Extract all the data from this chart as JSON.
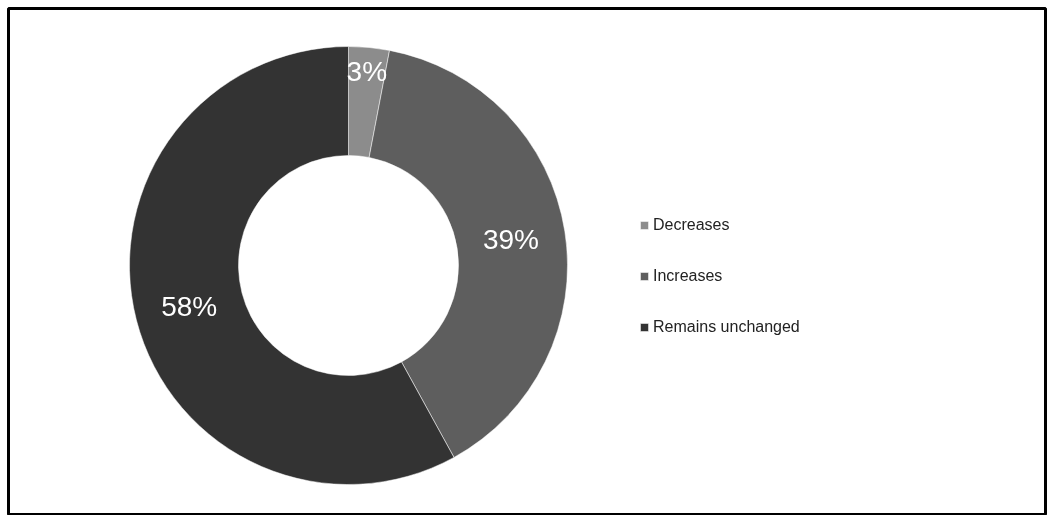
{
  "chart_data": {
    "type": "donut",
    "categories": [
      "Decreases",
      "Increases",
      "Remains unchanged"
    ],
    "values": [
      3,
      39,
      58
    ],
    "colors": [
      "#8c8c8c",
      "#5e5e5e",
      "#333333"
    ],
    "value_labels": [
      "3%",
      "39%",
      "58%"
    ],
    "legend": "right"
  }
}
